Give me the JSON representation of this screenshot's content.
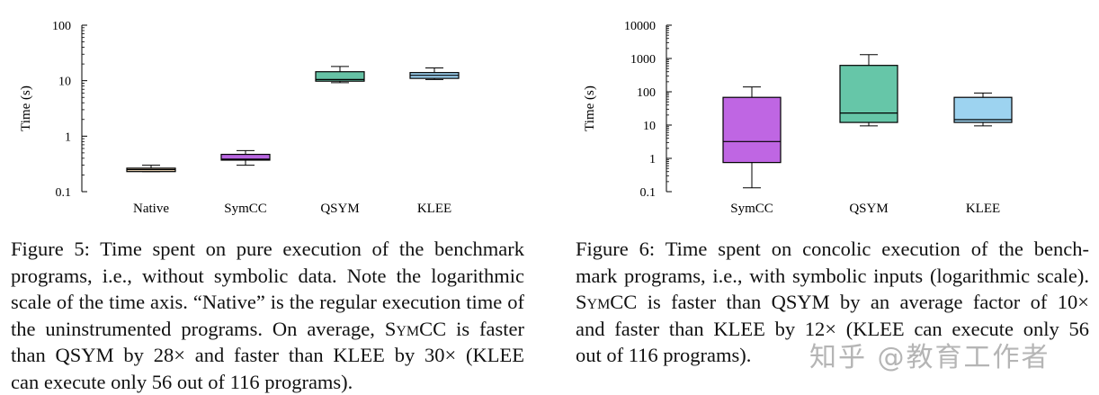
{
  "chart_data": [
    {
      "type": "box",
      "ylabel": "Time (s)",
      "yscale": "log",
      "ylim": [
        0.1,
        100
      ],
      "yticks": [
        "0.1",
        "1",
        "10",
        "100"
      ],
      "categories": [
        "Native",
        "SymCC",
        "QSYM",
        "KLEE"
      ],
      "boxes": [
        {
          "name": "Native",
          "whisker_low": 0.23,
          "q1": 0.23,
          "median": 0.25,
          "q3": 0.265,
          "whisker_high": 0.3,
          "color": "#dcc7a9"
        },
        {
          "name": "SymCC",
          "whisker_low": 0.3,
          "q1": 0.37,
          "median": 0.385,
          "q3": 0.47,
          "whisker_high": 0.55,
          "color": "#b866e0"
        },
        {
          "name": "QSYM",
          "whisker_low": 9.2,
          "q1": 9.8,
          "median": 10.5,
          "q3": 14.5,
          "whisker_high": 18,
          "color": "#66c2a5"
        },
        {
          "name": "KLEE",
          "whisker_low": 10.5,
          "q1": 11,
          "median": 12.5,
          "q3": 14,
          "whisker_high": 17,
          "color": "#9dd1ef"
        }
      ]
    },
    {
      "type": "box",
      "ylabel": "Time (s)",
      "yscale": "log",
      "ylim": [
        0.1,
        10000
      ],
      "yticks": [
        "0.1",
        "1",
        "10",
        "100",
        "1000",
        "10000"
      ],
      "categories": [
        "SymCC",
        "QSYM",
        "KLEE"
      ],
      "boxes": [
        {
          "name": "SymCC",
          "whisker_low": 0.13,
          "q1": 0.75,
          "median": 3.2,
          "q3": 68,
          "whisker_high": 140,
          "color": "#bf66e3"
        },
        {
          "name": "QSYM",
          "whisker_low": 9.5,
          "q1": 12,
          "median": 23,
          "q3": 620,
          "whisker_high": 1300,
          "color": "#66c6a8"
        },
        {
          "name": "KLEE",
          "whisker_low": 9.5,
          "q1": 12,
          "median": 14.5,
          "q3": 68,
          "whisker_high": 92,
          "color": "#9dd3f0"
        }
      ]
    }
  ],
  "captions": {
    "fig5": {
      "l1": "Figure 5: Time spent on pure execution of the benchmark",
      "l2": "programs, i.e., without symbolic data. Note the logarithmic",
      "l3": "scale of the time axis. “Native” is the regular execution time of",
      "l4a": "the uninstrumented programs. On average, ",
      "l4b": "SymCC",
      "l4c": " is faster",
      "l5": "than QSYM by 28× and faster than KLEE by 30× (KLEE",
      "l6": "can execute only 56 out of 116 programs)."
    },
    "fig6": {
      "l1": "Figure 6: Time spent on concolic execution of the bench-",
      "l2": "mark programs, i.e., with symbolic inputs (logarithmic scale).",
      "l3a": "SymCC",
      "l3b": " is faster than QSYM by an average factor of 10×",
      "l4": "and faster than KLEE by 12× (KLEE can execute only 56",
      "l5": "out of 116 programs)."
    }
  },
  "watermark": "知乎 @教育工作者"
}
